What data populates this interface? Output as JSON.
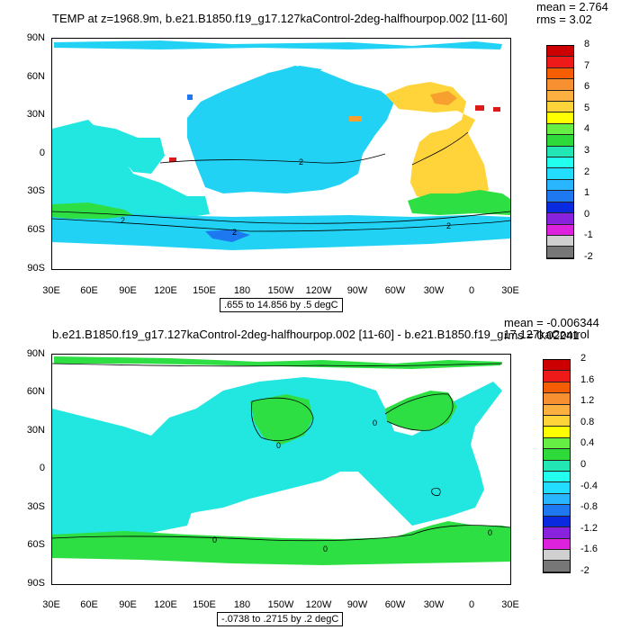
{
  "panel_top": {
    "title": "TEMP at z=1968.9m, b.e21.B1850.f19_g17.127kaControl-2deg-halfhourpop.002 [11-60]",
    "mean_label": "mean = 2.764",
    "rms_label": "rms = 3.02",
    "range_label": ".655 to 14.856 by .5 degC",
    "lat_labels": [
      "90N",
      "60N",
      "30N",
      "0",
      "30S",
      "60S",
      "90S"
    ],
    "lon_labels": [
      "30E",
      "60E",
      "90E",
      "120E",
      "150E",
      "180",
      "150W",
      "120W",
      "90W",
      "60W",
      "30W",
      "0",
      "30E"
    ],
    "contour_labels": [
      "2",
      "2",
      "2",
      "2"
    ],
    "colorbar_labels": [
      "8",
      "7",
      "6",
      "5",
      "4",
      "3",
      "2",
      "1",
      "0",
      "-1",
      "-2"
    ],
    "colorbar_colors": [
      "#cc0000",
      "#ee1a1a",
      "#f55e00",
      "#f79030",
      "#fbb040",
      "#ffd33a",
      "#ffff00",
      "#66ee44",
      "#2ed93a",
      "#22e6b4",
      "#22ffee",
      "#22ddff",
      "#2ab6ff",
      "#1e78f0",
      "#0a2ae0",
      "#8822dd",
      "#dd22dd",
      "#d0d0d0",
      "#777777"
    ]
  },
  "panel_bottom": {
    "title": "b.e21.B1850.f19_g17.127kaControl-2deg-halfhourpop.002 [11-60] - b.e21.B1850.f19_g17.127kaControl",
    "mean_label": "mean = -0.006344",
    "rms_label": "rms = 0.02241",
    "range_label": "-.0738 to .2715 by .2 degC",
    "lat_labels": [
      "90N",
      "60N",
      "30N",
      "0",
      "30S",
      "60S",
      "90S"
    ],
    "lon_labels": [
      "30E",
      "60E",
      "90E",
      "120E",
      "150E",
      "180",
      "150W",
      "120W",
      "90W",
      "60W",
      "30W",
      "0",
      "30E"
    ],
    "contour_labels": [
      "0",
      "0",
      "0",
      "0",
      "0"
    ],
    "colorbar_labels": [
      "2",
      "1.6",
      "1.2",
      "0.8",
      "0.4",
      "0",
      "-0.4",
      "-0.8",
      "-1.2",
      "-1.6",
      "-2"
    ],
    "colorbar_colors": [
      "#cc0000",
      "#ee1a1a",
      "#f55e00",
      "#f79030",
      "#fbb040",
      "#ffd33a",
      "#ffff00",
      "#66ee44",
      "#2ed93a",
      "#22e6b4",
      "#22ffee",
      "#22ddff",
      "#2ab6ff",
      "#1e78f0",
      "#0a2ae0",
      "#8822dd",
      "#dd22dd",
      "#d0d0d0",
      "#777777"
    ]
  },
  "colors": {
    "cyan_fill": "#22e6e0",
    "light_cyan_fill": "#22d2f5",
    "green_fill": "#2edf44",
    "yellow_fill": "#ffd33a",
    "orange_fill": "#f7a030",
    "red_fill": "#dd1a1a",
    "blue_fill": "#1e78f0",
    "land": "#ffffff",
    "contour": "#000000"
  }
}
